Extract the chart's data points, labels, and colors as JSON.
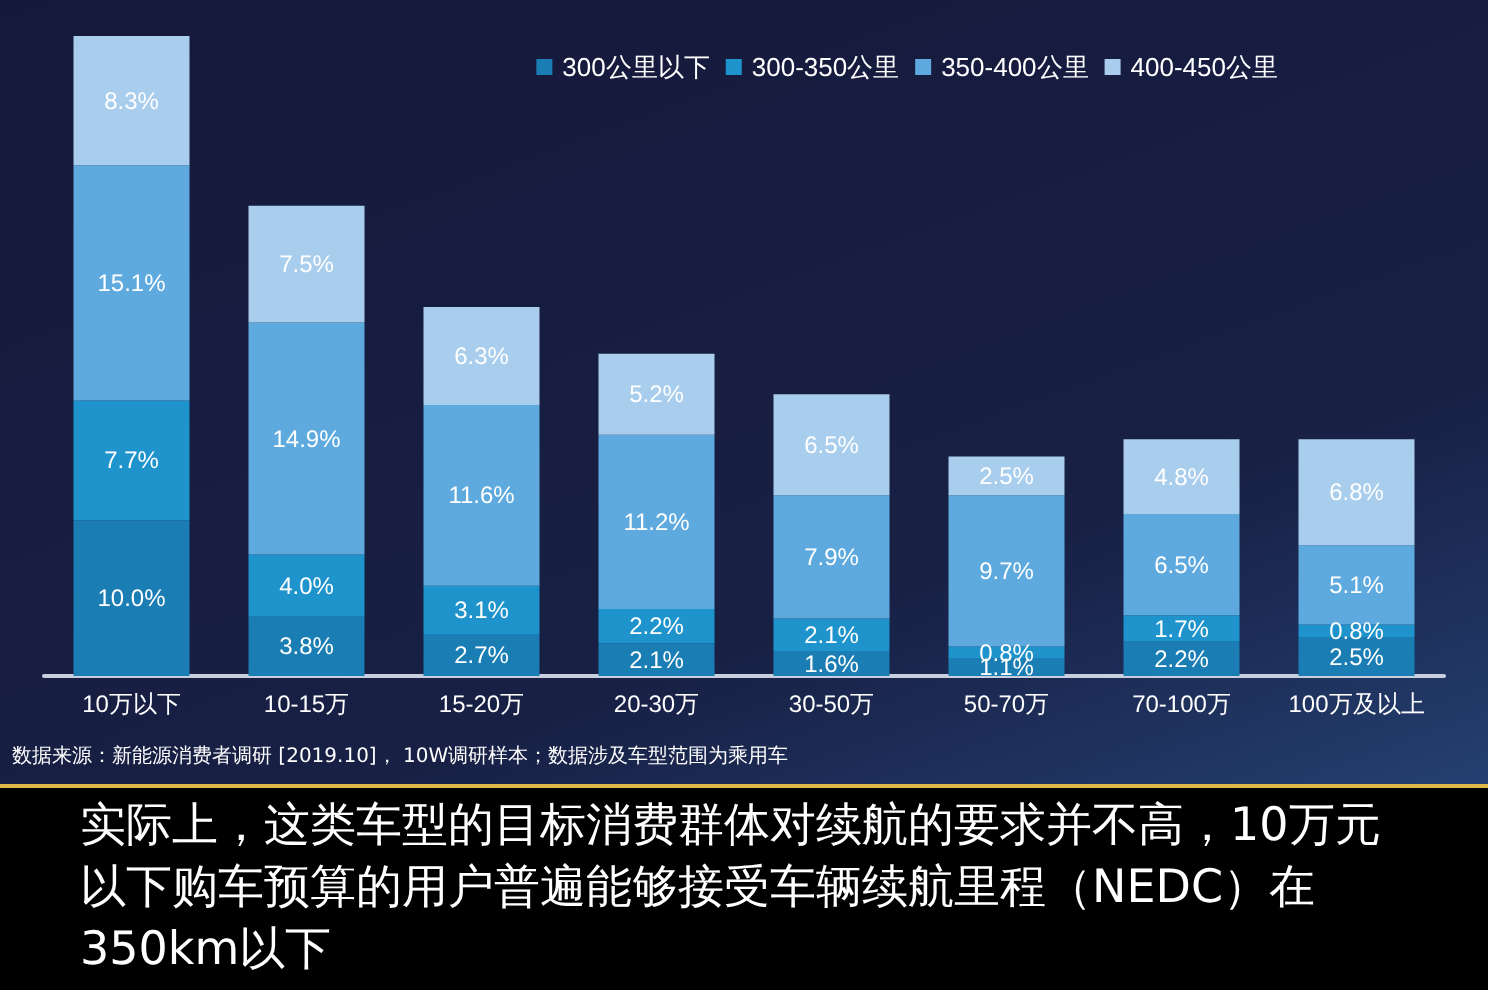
{
  "chart_data": {
    "type": "bar",
    "stacked": true,
    "legend": "top right",
    "categories": [
      "10万以下",
      "10-15万",
      "15-20万",
      "20-30万",
      "30-50万",
      "50-70万",
      "70-100万",
      "100万及以上"
    ],
    "series": [
      {
        "name": "300公里以下",
        "color": "#1a7db3",
        "values": [
          10.0,
          3.8,
          2.7,
          2.1,
          1.6,
          1.1,
          2.2,
          2.5
        ],
        "value_labels": [
          "10.0%",
          "3.8%",
          "2.7%",
          "2.1%",
          "1.6%",
          "1.1%",
          "2.2%",
          "2.5%"
        ]
      },
      {
        "name": "300-350公里",
        "color": "#1e93cc",
        "values": [
          7.7,
          4.0,
          3.1,
          2.2,
          2.1,
          0.8,
          1.7,
          0.8
        ],
        "value_labels": [
          "7.7%",
          "4.0%",
          "3.1%",
          "2.2%",
          "2.1%",
          "0.8%",
          "1.7%",
          "0.8%"
        ]
      },
      {
        "name": "350-400公里",
        "color": "#5eaadf",
        "values": [
          15.1,
          14.9,
          11.6,
          11.2,
          7.9,
          9.7,
          6.5,
          5.1
        ],
        "value_labels": [
          "15.1%",
          "14.9%",
          "11.6%",
          "11.2%",
          "7.9%",
          "9.7%",
          "6.5%",
          "5.1%"
        ]
      },
      {
        "name": "400-450公里",
        "color": "#a9cdec",
        "values": [
          8.3,
          7.5,
          6.3,
          5.2,
          6.5,
          2.5,
          4.8,
          6.8
        ],
        "value_labels": [
          "8.3%",
          "7.5%",
          "6.3%",
          "5.2%",
          "6.5%",
          "2.5%",
          "4.8%",
          "6.8%"
        ]
      }
    ],
    "annotations": [
      "数据来源：新能源消费者调研 [2019.10]， 10W调研样本；数据涉及车型范围为乘用车",
      "实际上，这类车型的目标消费群体对续航的要求并不高，10万元以下购车预算的用户普遍能够接受车辆续航里程（NEDC）在350km以下"
    ]
  }
}
